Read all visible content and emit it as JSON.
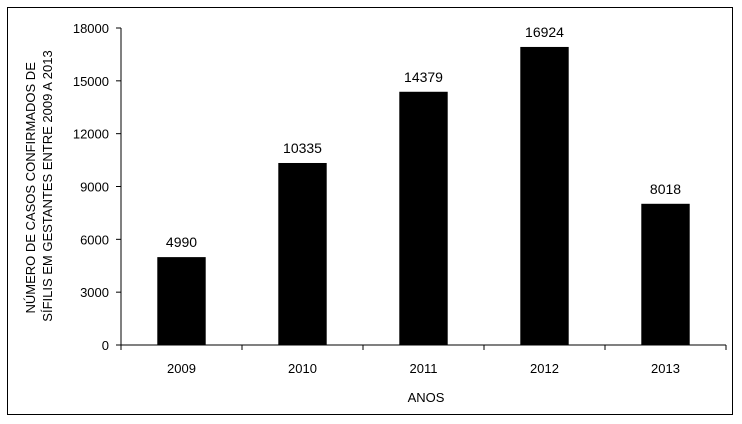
{
  "chart_data": {
    "type": "bar",
    "categories": [
      "2009",
      "2010",
      "2011",
      "2012",
      "2013"
    ],
    "values": [
      4990,
      10335,
      14379,
      16924,
      8018
    ],
    "data_labels": [
      "4990",
      "10335",
      "14379",
      "16924",
      "8018"
    ],
    "xlabel": "ANOS",
    "ylabel_lines": [
      "NÚMERO DE CASOS CONFIRMADOS DE",
      "SÍFILIS EM GESTANTES  ENTRE 2009 A 2013"
    ],
    "ylim": [
      0,
      18000
    ],
    "yticks": [
      0,
      3000,
      6000,
      9000,
      12000,
      15000,
      18000
    ],
    "ytick_labels": [
      "0",
      "3000",
      "6000",
      "9000",
      "12000",
      "15000",
      "18000"
    ],
    "grid": false,
    "bar_color": "#000000"
  }
}
